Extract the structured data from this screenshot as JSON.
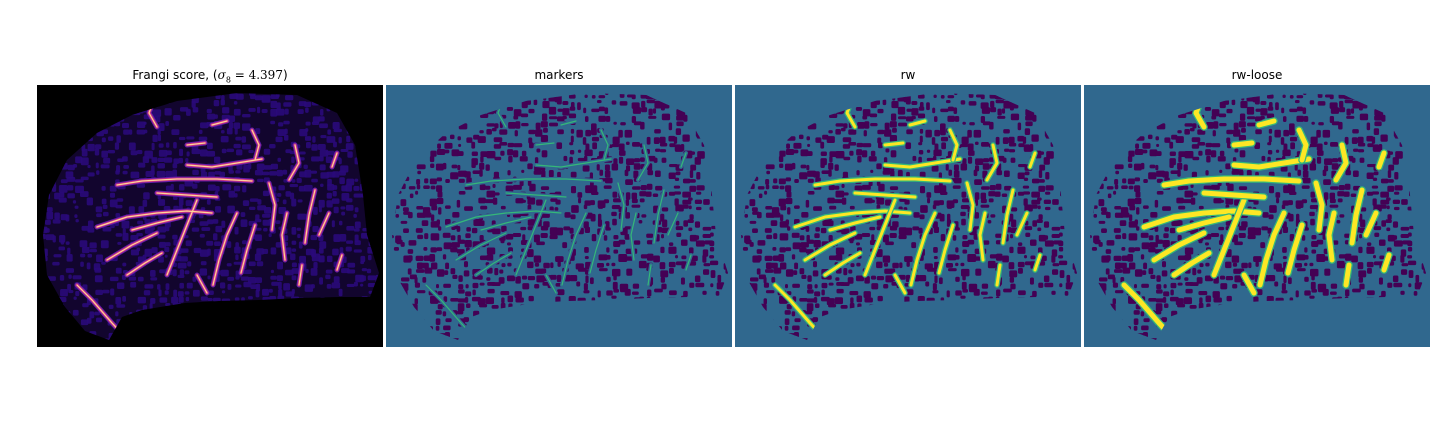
{
  "figure": {
    "panels": [
      {
        "id": "frangi",
        "title_prefix": "Frangi score, (",
        "title_symbol": "σ",
        "title_subscript": "8",
        "title_equals": " = ",
        "title_value": "4.397",
        "title_suffix": ")",
        "colormap": "magma",
        "background": "#000000"
      },
      {
        "id": "markers",
        "title": "markers",
        "colormap": "viridis",
        "background": "#30688e"
      },
      {
        "id": "rw",
        "title": "rw",
        "colormap": "viridis",
        "background": "#30688e"
      },
      {
        "id": "rw-loose",
        "title": "rw-loose",
        "colormap": "viridis",
        "background": "#30688e"
      }
    ],
    "colors": {
      "tissue_dark": "#440154",
      "background_teal": "#30688e",
      "marker_green": "#35b779",
      "segment_yellow": "#fde725",
      "frangi_bg": "#000000",
      "frangi_texture": "#2a0a7a",
      "frangi_low": "#5f1ca8",
      "frangi_mid": "#d0357e",
      "frangi_high": "#fcd49a"
    }
  }
}
